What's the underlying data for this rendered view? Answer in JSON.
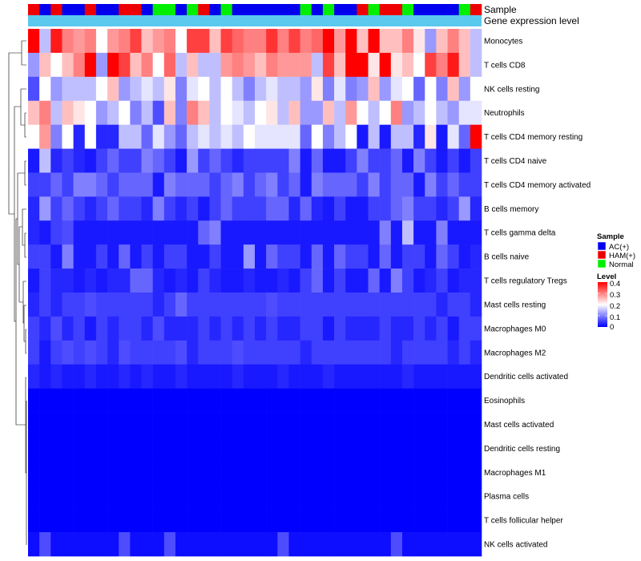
{
  "chart_data": {
    "type": "heatmap",
    "title": "",
    "xlabel": "",
    "ylabel": "",
    "top_annotations": [
      "Sample",
      "Gene expression level"
    ],
    "sample_groups": [
      "HAM",
      "AC",
      "HAM",
      "AC",
      "AC",
      "HAM",
      "AC",
      "AC",
      "HAM",
      "HAM",
      "AC",
      "Normal",
      "Normal",
      "AC",
      "Normal",
      "HAM",
      "AC",
      "Normal",
      "AC",
      "AC",
      "AC",
      "AC",
      "AC",
      "AC",
      "Normal",
      "AC",
      "Normal",
      "AC",
      "AC",
      "HAM",
      "Normal",
      "HAM",
      "HAM",
      "Normal",
      "AC",
      "AC",
      "AC",
      "AC",
      "Normal",
      "HAM"
    ],
    "sample_colors": {
      "AC": "#0000EE",
      "HAM": "#EE0000",
      "Normal": "#00EE00"
    },
    "gene_expression_color": "#5BC8EE",
    "rows": [
      "Monocytes",
      "T cells CD8",
      "NK cells resting",
      "Neutrophils",
      "T cells CD4 memory resting",
      "T cells CD4 naive",
      "T cells CD4 memory activated",
      "B cells memory",
      "T cells gamma delta",
      "B cells naive",
      "T cells regulatory  Tregs",
      "Mast cells resting",
      "Macrophages M0",
      "Macrophages M2",
      "Dendritic cells activated",
      "Eosinophils",
      "Mast cells activated",
      "Dendritic cells resting",
      "Macrophages M1",
      "Plasma cells",
      "T cells follicular helper",
      "NK cells activated"
    ],
    "values": [
      [
        0.4,
        0.15,
        0.38,
        0.3,
        0.28,
        0.3,
        0.2,
        0.28,
        0.3,
        0.35,
        0.25,
        0.28,
        0.3,
        0.2,
        0.35,
        0.35,
        0.25,
        0.35,
        0.32,
        0.3,
        0.3,
        0.36,
        0.3,
        0.35,
        0.3,
        0.32,
        0.4,
        0.28,
        0.4,
        0.25,
        0.4,
        0.25,
        0.25,
        0.3,
        0.22,
        0.12,
        0.25,
        0.3,
        0.25,
        0.15
      ],
      [
        0.12,
        0.25,
        0.2,
        0.25,
        0.3,
        0.4,
        0.12,
        0.4,
        0.35,
        0.25,
        0.3,
        0.2,
        0.32,
        0.15,
        0.25,
        0.15,
        0.15,
        0.28,
        0.3,
        0.28,
        0.25,
        0.3,
        0.28,
        0.28,
        0.28,
        0.15,
        0.35,
        0.25,
        0.4,
        0.4,
        0.22,
        0.4,
        0.22,
        0.25,
        0.2,
        0.35,
        0.3,
        0.38,
        0.25,
        0.15
      ],
      [
        0.06,
        0.2,
        0.12,
        0.15,
        0.15,
        0.15,
        0.2,
        0.25,
        0.12,
        0.15,
        0.18,
        0.15,
        0.22,
        0.1,
        0.18,
        0.2,
        0.15,
        0.2,
        0.15,
        0.1,
        0.15,
        0.18,
        0.15,
        0.15,
        0.12,
        0.22,
        0.1,
        0.18,
        0.1,
        0.12,
        0.25,
        0.12,
        0.18,
        0.2,
        0.08,
        0.2,
        0.1,
        0.25,
        0.12,
        0.2
      ],
      [
        0.25,
        0.3,
        0.15,
        0.25,
        0.22,
        0.2,
        0.12,
        0.15,
        0.2,
        0.1,
        0.15,
        0.06,
        0.25,
        0.1,
        0.3,
        0.25,
        0.15,
        0.2,
        0.18,
        0.15,
        0.2,
        0.22,
        0.15,
        0.25,
        0.12,
        0.12,
        0.25,
        0.15,
        0.28,
        0.2,
        0.15,
        0.2,
        0.3,
        0.12,
        0.15,
        0.2,
        0.15,
        0.12,
        0.18,
        0.18
      ],
      [
        0.2,
        0.28,
        0.1,
        0.2,
        0.03,
        0.2,
        0.03,
        0.03,
        0.15,
        0.15,
        0.08,
        0.18,
        0.12,
        0.08,
        0.15,
        0.18,
        0.15,
        0.18,
        0.15,
        0.2,
        0.18,
        0.18,
        0.18,
        0.18,
        0.08,
        0.2,
        0.1,
        0.15,
        0.2,
        0.02,
        0.15,
        0.02,
        0.15,
        0.15,
        0.03,
        0.22,
        0.02,
        0.18,
        0.08,
        0.4
      ],
      [
        0.02,
        0.15,
        0.03,
        0.05,
        0.03,
        0.02,
        0.05,
        0.08,
        0.05,
        0.05,
        0.1,
        0.08,
        0.05,
        0.02,
        0.12,
        0.05,
        0.08,
        0.05,
        0.03,
        0.05,
        0.05,
        0.05,
        0.05,
        0.1,
        0.02,
        0.08,
        0.02,
        0.02,
        0.05,
        0.1,
        0.05,
        0.05,
        0.08,
        0.02,
        0.1,
        0.05,
        0.02,
        0.05,
        0.02,
        0.05
      ],
      [
        0.05,
        0.05,
        0.08,
        0.05,
        0.1,
        0.1,
        0.08,
        0.05,
        0.08,
        0.08,
        0.08,
        0.02,
        0.1,
        0.08,
        0.08,
        0.08,
        0.05,
        0.08,
        0.1,
        0.05,
        0.08,
        0.1,
        0.05,
        0.08,
        0.02,
        0.1,
        0.08,
        0.08,
        0.08,
        0.05,
        0.1,
        0.05,
        0.08,
        0.08,
        0.02,
        0.1,
        0.05,
        0.08,
        0.05,
        0.05
      ],
      [
        0.03,
        0.12,
        0.05,
        0.08,
        0.05,
        0.03,
        0.05,
        0.08,
        0.05,
        0.05,
        0.03,
        0.1,
        0.05,
        0.03,
        0.05,
        0.02,
        0.05,
        0.08,
        0.05,
        0.05,
        0.05,
        0.08,
        0.08,
        0.03,
        0.08,
        0.03,
        0.02,
        0.05,
        0.02,
        0.02,
        0.05,
        0.05,
        0.08,
        0.1,
        0.05,
        0.05,
        0.03,
        0.05,
        0.12,
        0.03
      ],
      [
        0.03,
        0.02,
        0.05,
        0.06,
        0.02,
        0.02,
        0.02,
        0.02,
        0.02,
        0.02,
        0.02,
        0.02,
        0.02,
        0.02,
        0.02,
        0.08,
        0.1,
        0.02,
        0.02,
        0.02,
        0.02,
        0.02,
        0.02,
        0.02,
        0.02,
        0.02,
        0.02,
        0.02,
        0.02,
        0.02,
        0.02,
        0.1,
        0.02,
        0.15,
        0.02,
        0.02,
        0.1,
        0.02,
        0.02,
        0.02
      ],
      [
        0.05,
        0.05,
        0.02,
        0.1,
        0.02,
        0.02,
        0.05,
        0.02,
        0.08,
        0.02,
        0.05,
        0.02,
        0.05,
        0.05,
        0.02,
        0.02,
        0.05,
        0.02,
        0.02,
        0.12,
        0.02,
        0.08,
        0.05,
        0.05,
        0.02,
        0.08,
        0.02,
        0.08,
        0.05,
        0.05,
        0.02,
        0.08,
        0.02,
        0.05,
        0.05,
        0.02,
        0.08,
        0.05,
        0.02,
        0.03
      ],
      [
        0.02,
        0.05,
        0.03,
        0.03,
        0.02,
        0.03,
        0.02,
        0.03,
        0.03,
        0.08,
        0.08,
        0.03,
        0.02,
        0.03,
        0.02,
        0.05,
        0.03,
        0.02,
        0.02,
        0.03,
        0.02,
        0.02,
        0.03,
        0.02,
        0.05,
        0.08,
        0.02,
        0.05,
        0.02,
        0.02,
        0.08,
        0.02,
        0.1,
        0.05,
        0.02,
        0.03,
        0.05,
        0.02,
        0.03,
        0.03
      ],
      [
        0.03,
        0.05,
        0.03,
        0.05,
        0.05,
        0.06,
        0.05,
        0.05,
        0.05,
        0.05,
        0.05,
        0.03,
        0.05,
        0.08,
        0.05,
        0.05,
        0.05,
        0.05,
        0.05,
        0.05,
        0.05,
        0.06,
        0.05,
        0.05,
        0.05,
        0.05,
        0.05,
        0.05,
        0.05,
        0.05,
        0.05,
        0.05,
        0.05,
        0.05,
        0.05,
        0.05,
        0.03,
        0.05,
        0.05,
        0.03
      ],
      [
        0.05,
        0.03,
        0.06,
        0.03,
        0.05,
        0.02,
        0.05,
        0.03,
        0.05,
        0.05,
        0.03,
        0.06,
        0.03,
        0.03,
        0.03,
        0.05,
        0.03,
        0.05,
        0.03,
        0.05,
        0.03,
        0.05,
        0.03,
        0.03,
        0.05,
        0.05,
        0.02,
        0.05,
        0.03,
        0.03,
        0.03,
        0.05,
        0.03,
        0.03,
        0.05,
        0.03,
        0.05,
        0.02,
        0.05,
        0.05
      ],
      [
        0.05,
        0.02,
        0.05,
        0.06,
        0.05,
        0.06,
        0.05,
        0.03,
        0.06,
        0.05,
        0.05,
        0.05,
        0.05,
        0.06,
        0.03,
        0.05,
        0.05,
        0.05,
        0.06,
        0.05,
        0.05,
        0.05,
        0.05,
        0.05,
        0.03,
        0.05,
        0.05,
        0.05,
        0.05,
        0.05,
        0.05,
        0.05,
        0.03,
        0.05,
        0.05,
        0.05,
        0.05,
        0.03,
        0.05,
        0.03
      ],
      [
        0.03,
        0.02,
        0.03,
        0.02,
        0.02,
        0.03,
        0.02,
        0.02,
        0.03,
        0.02,
        0.03,
        0.02,
        0.02,
        0.03,
        0.02,
        0.02,
        0.02,
        0.02,
        0.03,
        0.02,
        0.02,
        0.02,
        0.03,
        0.02,
        0.02,
        0.02,
        0.03,
        0.02,
        0.02,
        0.02,
        0.02,
        0.02,
        0.02,
        0.03,
        0.02,
        0.02,
        0.02,
        0.02,
        0.02,
        0.02
      ],
      [
        0,
        0,
        0,
        0,
        0,
        0,
        0,
        0,
        0,
        0,
        0,
        0,
        0,
        0,
        0,
        0,
        0,
        0,
        0,
        0,
        0,
        0,
        0,
        0,
        0,
        0,
        0,
        0,
        0,
        0,
        0,
        0,
        0,
        0,
        0,
        0,
        0,
        0,
        0,
        0
      ],
      [
        0,
        0,
        0,
        0,
        0,
        0,
        0,
        0,
        0,
        0,
        0,
        0,
        0,
        0,
        0,
        0,
        0,
        0,
        0,
        0,
        0,
        0,
        0,
        0,
        0,
        0,
        0,
        0,
        0,
        0,
        0,
        0,
        0,
        0,
        0,
        0,
        0,
        0,
        0,
        0
      ],
      [
        0,
        0,
        0,
        0,
        0,
        0,
        0,
        0,
        0,
        0,
        0,
        0,
        0,
        0,
        0,
        0,
        0,
        0,
        0,
        0,
        0,
        0,
        0,
        0,
        0,
        0,
        0,
        0,
        0,
        0,
        0,
        0,
        0,
        0,
        0,
        0,
        0,
        0,
        0,
        0
      ],
      [
        0,
        0,
        0,
        0,
        0,
        0,
        0,
        0,
        0,
        0,
        0,
        0,
        0,
        0,
        0,
        0,
        0,
        0,
        0,
        0,
        0,
        0,
        0,
        0,
        0,
        0,
        0,
        0,
        0,
        0,
        0,
        0,
        0,
        0,
        0,
        0,
        0,
        0,
        0,
        0
      ],
      [
        0,
        0,
        0,
        0,
        0,
        0,
        0,
        0,
        0,
        0,
        0,
        0,
        0,
        0,
        0,
        0,
        0,
        0,
        0,
        0,
        0,
        0,
        0,
        0,
        0,
        0,
        0,
        0,
        0,
        0,
        0,
        0,
        0,
        0,
        0,
        0,
        0,
        0,
        0,
        0
      ],
      [
        0,
        0,
        0,
        0,
        0,
        0,
        0,
        0,
        0,
        0,
        0,
        0,
        0,
        0,
        0,
        0,
        0,
        0,
        0,
        0,
        0,
        0,
        0,
        0,
        0,
        0,
        0,
        0,
        0,
        0,
        0,
        0,
        0,
        0,
        0,
        0,
        0,
        0,
        0,
        0
      ],
      [
        0.01,
        0.06,
        0.01,
        0.01,
        0.01,
        0.01,
        0.01,
        0.01,
        0.06,
        0.01,
        0.01,
        0.01,
        0.06,
        0.01,
        0.01,
        0.01,
        0.01,
        0.01,
        0.01,
        0.01,
        0.01,
        0.01,
        0.06,
        0.01,
        0.01,
        0.01,
        0.01,
        0.01,
        0.01,
        0.01,
        0.01,
        0.01,
        0.06,
        0.01,
        0.01,
        0.01,
        0.01,
        0.01,
        0.01,
        0.01
      ]
    ],
    "color_scale": {
      "min": 0,
      "max": 0.4,
      "stops": [
        {
          "value": 0,
          "color": "#0000FF"
        },
        {
          "value": 0.2,
          "color": "#FFFFFF"
        },
        {
          "value": 0.4,
          "color": "#FF0000"
        }
      ]
    },
    "legend": {
      "sample_title": "Sample",
      "sample_items": [
        {
          "label": "AC(+)",
          "color": "#0000EE"
        },
        {
          "label": "HAM(+)",
          "color": "#EE0000"
        },
        {
          "label": "Normal",
          "color": "#00EE00"
        }
      ],
      "level_title": "Level",
      "level_ticks": [
        "0.4",
        "0.3",
        "0.2",
        "0.1",
        "0"
      ],
      "placement": "right"
    },
    "dendrogram": "rows"
  }
}
